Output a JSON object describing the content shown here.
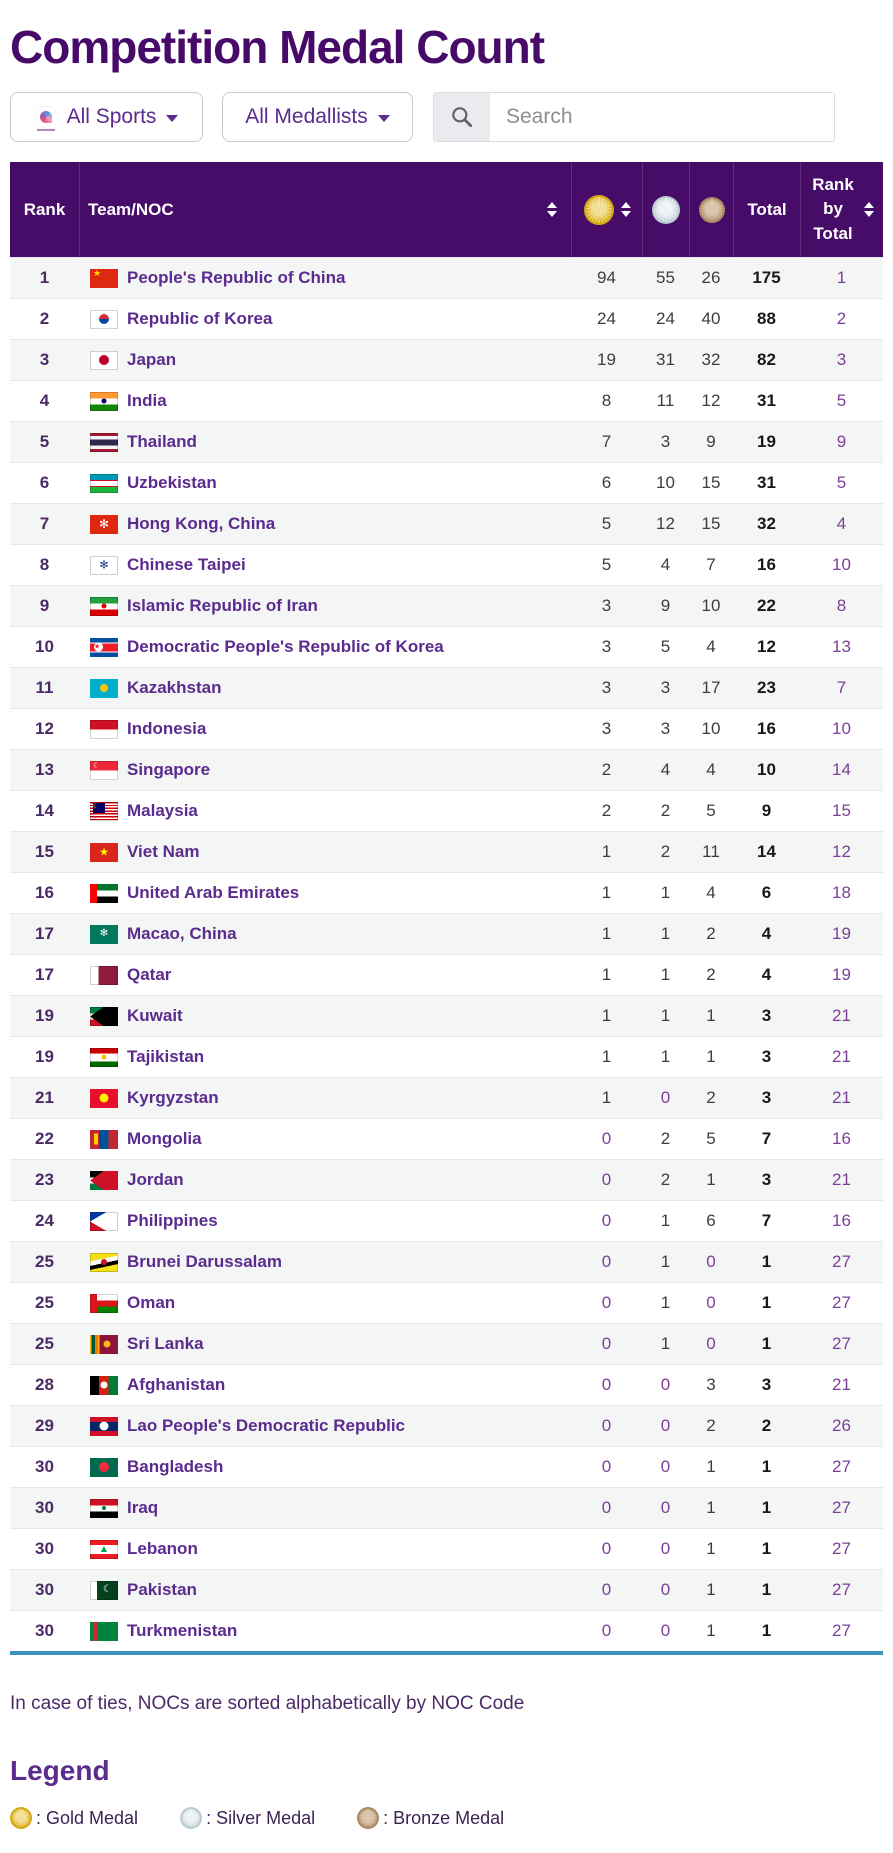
{
  "page": {
    "title": "Competition Medal Count"
  },
  "filters": {
    "sports_label": "All Sports",
    "medallists_label": "All Medallists",
    "search_placeholder": "Search"
  },
  "table": {
    "headers": {
      "rank": "Rank",
      "team": "Team/NOC",
      "gold_icon": "gold-medal-icon",
      "silver_icon": "silver-medal-icon",
      "bronze_icon": "bronze-medal-icon",
      "total": "Total",
      "rank_by_total": "Rank by Total"
    },
    "rows": [
      {
        "rank": "1",
        "team": "People's Republic of China",
        "flag": "CHN",
        "gold": 94,
        "silver": 55,
        "bronze": 26,
        "total": 175,
        "rbt": "1"
      },
      {
        "rank": "2",
        "team": "Republic of Korea",
        "flag": "KOR",
        "gold": 24,
        "silver": 24,
        "bronze": 40,
        "total": 88,
        "rbt": "2"
      },
      {
        "rank": "3",
        "team": "Japan",
        "flag": "JPN",
        "gold": 19,
        "silver": 31,
        "bronze": 32,
        "total": 82,
        "rbt": "3"
      },
      {
        "rank": "4",
        "team": "India",
        "flag": "IND",
        "gold": 8,
        "silver": 11,
        "bronze": 12,
        "total": 31,
        "rbt": "5"
      },
      {
        "rank": "5",
        "team": "Thailand",
        "flag": "THA",
        "gold": 7,
        "silver": 3,
        "bronze": 9,
        "total": 19,
        "rbt": "9"
      },
      {
        "rank": "6",
        "team": "Uzbekistan",
        "flag": "UZB",
        "gold": 6,
        "silver": 10,
        "bronze": 15,
        "total": 31,
        "rbt": "5"
      },
      {
        "rank": "7",
        "team": "Hong Kong, China",
        "flag": "HKG",
        "gold": 5,
        "silver": 12,
        "bronze": 15,
        "total": 32,
        "rbt": "4"
      },
      {
        "rank": "8",
        "team": "Chinese Taipei",
        "flag": "TPE",
        "gold": 5,
        "silver": 4,
        "bronze": 7,
        "total": 16,
        "rbt": "10"
      },
      {
        "rank": "9",
        "team": "Islamic Republic of Iran",
        "flag": "IRI",
        "gold": 3,
        "silver": 9,
        "bronze": 10,
        "total": 22,
        "rbt": "8"
      },
      {
        "rank": "10",
        "team": "Democratic People's Republic of Korea",
        "flag": "PRK",
        "gold": 3,
        "silver": 5,
        "bronze": 4,
        "total": 12,
        "rbt": "13"
      },
      {
        "rank": "11",
        "team": "Kazakhstan",
        "flag": "KAZ",
        "gold": 3,
        "silver": 3,
        "bronze": 17,
        "total": 23,
        "rbt": "7"
      },
      {
        "rank": "12",
        "team": "Indonesia",
        "flag": "INA",
        "gold": 3,
        "silver": 3,
        "bronze": 10,
        "total": 16,
        "rbt": "10"
      },
      {
        "rank": "13",
        "team": "Singapore",
        "flag": "SGP",
        "gold": 2,
        "silver": 4,
        "bronze": 4,
        "total": 10,
        "rbt": "14"
      },
      {
        "rank": "14",
        "team": "Malaysia",
        "flag": "MAS",
        "gold": 2,
        "silver": 2,
        "bronze": 5,
        "total": 9,
        "rbt": "15"
      },
      {
        "rank": "15",
        "team": "Viet Nam",
        "flag": "VIE",
        "gold": 1,
        "silver": 2,
        "bronze": 11,
        "total": 14,
        "rbt": "12"
      },
      {
        "rank": "16",
        "team": "United Arab Emirates",
        "flag": "UAE",
        "gold": 1,
        "silver": 1,
        "bronze": 4,
        "total": 6,
        "rbt": "18"
      },
      {
        "rank": "17",
        "team": "Macao, China",
        "flag": "MAC",
        "gold": 1,
        "silver": 1,
        "bronze": 2,
        "total": 4,
        "rbt": "19"
      },
      {
        "rank": "17",
        "team": "Qatar",
        "flag": "QAT",
        "gold": 1,
        "silver": 1,
        "bronze": 2,
        "total": 4,
        "rbt": "19"
      },
      {
        "rank": "19",
        "team": "Kuwait",
        "flag": "KUW",
        "gold": 1,
        "silver": 1,
        "bronze": 1,
        "total": 3,
        "rbt": "21"
      },
      {
        "rank": "19",
        "team": "Tajikistan",
        "flag": "TJK",
        "gold": 1,
        "silver": 1,
        "bronze": 1,
        "total": 3,
        "rbt": "21"
      },
      {
        "rank": "21",
        "team": "Kyrgyzstan",
        "flag": "KGZ",
        "gold": 1,
        "silver": 0,
        "bronze": 2,
        "total": 3,
        "rbt": "21"
      },
      {
        "rank": "22",
        "team": "Mongolia",
        "flag": "MGL",
        "gold": 0,
        "silver": 2,
        "bronze": 5,
        "total": 7,
        "rbt": "16"
      },
      {
        "rank": "23",
        "team": "Jordan",
        "flag": "JOR",
        "gold": 0,
        "silver": 2,
        "bronze": 1,
        "total": 3,
        "rbt": "21"
      },
      {
        "rank": "24",
        "team": "Philippines",
        "flag": "PHI",
        "gold": 0,
        "silver": 1,
        "bronze": 6,
        "total": 7,
        "rbt": "16"
      },
      {
        "rank": "25",
        "team": "Brunei Darussalam",
        "flag": "BRU",
        "gold": 0,
        "silver": 1,
        "bronze": 0,
        "total": 1,
        "rbt": "27"
      },
      {
        "rank": "25",
        "team": "Oman",
        "flag": "OMA",
        "gold": 0,
        "silver": 1,
        "bronze": 0,
        "total": 1,
        "rbt": "27"
      },
      {
        "rank": "25",
        "team": "Sri Lanka",
        "flag": "SRI",
        "gold": 0,
        "silver": 1,
        "bronze": 0,
        "total": 1,
        "rbt": "27"
      },
      {
        "rank": "28",
        "team": "Afghanistan",
        "flag": "AFG",
        "gold": 0,
        "silver": 0,
        "bronze": 3,
        "total": 3,
        "rbt": "21"
      },
      {
        "rank": "29",
        "team": "Lao People's Democratic Republic",
        "flag": "LAO",
        "gold": 0,
        "silver": 0,
        "bronze": 2,
        "total": 2,
        "rbt": "26"
      },
      {
        "rank": "30",
        "team": "Bangladesh",
        "flag": "BAN",
        "gold": 0,
        "silver": 0,
        "bronze": 1,
        "total": 1,
        "rbt": "27"
      },
      {
        "rank": "30",
        "team": "Iraq",
        "flag": "IRQ",
        "gold": 0,
        "silver": 0,
        "bronze": 1,
        "total": 1,
        "rbt": "27"
      },
      {
        "rank": "30",
        "team": "Lebanon",
        "flag": "LBN",
        "gold": 0,
        "silver": 0,
        "bronze": 1,
        "total": 1,
        "rbt": "27"
      },
      {
        "rank": "30",
        "team": "Pakistan",
        "flag": "PAK",
        "gold": 0,
        "silver": 0,
        "bronze": 1,
        "total": 1,
        "rbt": "27"
      },
      {
        "rank": "30",
        "team": "Turkmenistan",
        "flag": "TKM",
        "gold": 0,
        "silver": 0,
        "bronze": 1,
        "total": 1,
        "rbt": "27"
      }
    ]
  },
  "footer": {
    "tie_note": "In case of ties, NOCs are sorted alphabetically by NOC Code"
  },
  "legend": {
    "title": "Legend",
    "items": [
      {
        "icon": "gold-medal-icon",
        "label": ": Gold Medal"
      },
      {
        "icon": "silver-medal-icon",
        "label": ": Silver Medal"
      },
      {
        "icon": "bronze-medal-icon",
        "label": ": Bronze Medal"
      }
    ]
  },
  "colors": {
    "header_purple": "#470b68",
    "title_purple": "#470a68",
    "team_link_purple": "#5b2b8e",
    "rank_purple": "#4b2a66",
    "value_gray": "#3c3c43",
    "zero_purple": "#7c3e98",
    "total_black": "#17171c",
    "stripe": "#f4f6f5",
    "bottom_line_blue": "#3b94bc",
    "gold": "#e3b512",
    "silver": "#c7d6dd",
    "bronze": "#b8946a"
  },
  "flags": {
    "CHN": {
      "bg": "#de2910",
      "em": [
        {
          "ch": "★",
          "c": "#ffde00",
          "pos": "lt",
          "s": 9
        }
      ]
    },
    "KOR": {
      "bg": "#ffffff",
      "bd": 1,
      "em": [
        {
          "g": "linear-gradient(180deg,#cd2e3a 50%,#0047a0 50%)",
          "pos": "c",
          "s": 10
        }
      ]
    },
    "JPN": {
      "bg": "#ffffff",
      "bd": 1,
      "em": [
        {
          "g": "#bc002d",
          "pos": "c",
          "s": 10
        }
      ]
    },
    "IND": {
      "bg": "linear-gradient(180deg,#ff9933 0 33%,#ffffff 33% 66%,#138808 66%)",
      "bd": 1,
      "em": [
        {
          "g": "#000080",
          "pos": "c",
          "s": 5
        }
      ]
    },
    "THA": {
      "bg": "linear-gradient(180deg,#a51931 0 17%,#f4f5f8 17% 33%,#2d2a4a 33% 67%,#f4f5f8 67% 83%,#a51931 83%)",
      "bd": 1
    },
    "UZB": {
      "bg": "linear-gradient(180deg,#0099b5 0 31%,#ce1126 31% 36%,#ffffff 36% 64%,#ce1126 64% 69%,#1eb53a 69%)",
      "bd": 1
    },
    "HKG": {
      "bg": "#de2910",
      "em": [
        {
          "ch": "✻",
          "c": "#ffffff",
          "pos": "c",
          "s": 12
        }
      ]
    },
    "TPE": {
      "bg": "#ffffff",
      "bd": 1,
      "em": [
        {
          "ch": "✻",
          "c": "#1a3a8c",
          "pos": "c",
          "s": 11
        }
      ]
    },
    "IRI": {
      "bg": "linear-gradient(180deg,#239f40 0 33%,#ffffff 33% 66%,#da0000 66%)",
      "bd": 1,
      "em": [
        {
          "g": "#da0000",
          "pos": "c",
          "s": 5
        }
      ]
    },
    "PRK": {
      "bg": "linear-gradient(180deg,#024fa2 0 24%,#ffffff 24% 30%,#ed1c27 30% 70%,#ffffff 70% 76%,#024fa2 76%)",
      "em": [
        {
          "g": "#ffffff",
          "pos": "l",
          "s": 9
        },
        {
          "ch": "★",
          "c": "#ed1c27",
          "pos": "l",
          "s": 7
        }
      ]
    },
    "KAZ": {
      "bg": "#00afca",
      "em": [
        {
          "g": "#fec50c",
          "pos": "c",
          "s": 8
        }
      ]
    },
    "INA": {
      "bg": "linear-gradient(180deg,#ce1126 50%,#ffffff 50%)",
      "bd": 1
    },
    "SGP": {
      "bg": "linear-gradient(180deg,#ed2939 50%,#ffffff 50%)",
      "bd": 1,
      "em": [
        {
          "ch": "☾",
          "c": "#ffffff",
          "pos": "lt",
          "s": 8
        }
      ]
    },
    "MAS": {
      "bg": "repeating-linear-gradient(180deg,#cc0001 0 1.4px,#ffffff 1.4px 2.8px)",
      "bd": 1,
      "em": [
        {
          "g": "#010066",
          "pos": "lt",
          "sq": 1,
          "w": 12,
          "h": 10
        },
        {
          "ch": "☾",
          "c": "#ffcc00",
          "pos": "lt",
          "s": 7
        }
      ]
    },
    "VIE": {
      "bg": "#da251d",
      "em": [
        {
          "ch": "★",
          "c": "#ffff00",
          "pos": "c",
          "s": 11
        }
      ]
    },
    "UAE": {
      "bg": "linear-gradient(90deg,#ff0000 0 25%,transparent 25%),linear-gradient(180deg,#00732f 0 33%,#ffffff 33% 66%,#000000 66%)"
    },
    "MAC": {
      "bg": "#00785e",
      "em": [
        {
          "ch": "✻",
          "c": "#ffffff",
          "pos": "c",
          "s": 10
        }
      ]
    },
    "QAT": {
      "bg": "linear-gradient(90deg,#ffffff 0 30%,#8d1b3d 30%)",
      "bd": 1
    },
    "KUW": {
      "bg": "conic-gradient(from 55deg at 0% 50%,#000000 0 70deg,transparent 70deg),linear-gradient(180deg,#007a3d 0 33%,#ffffff 33% 66%,#ce1126 66%)",
      "bd": 1
    },
    "TJK": {
      "bg": "linear-gradient(180deg,#cc0000 0 30%,#ffffff 30% 70%,#006600 70%)",
      "bd": 1,
      "em": [
        {
          "g": "#f8c300",
          "pos": "c",
          "s": 5
        }
      ]
    },
    "KGZ": {
      "bg": "#e8112d",
      "em": [
        {
          "g": "#ffef00",
          "pos": "c",
          "s": 9
        }
      ]
    },
    "MGL": {
      "bg": "linear-gradient(90deg,#c4272f 0 33%,#015197 33% 66%,#c4272f 66%)",
      "em": [
        {
          "g": "#f9cf02",
          "pos": "l",
          "sq": 1,
          "w": 4,
          "h": 11
        }
      ]
    },
    "JOR": {
      "bg": "conic-gradient(from 55deg at 0% 50%,#ce1126 0 70deg,transparent 70deg),linear-gradient(180deg,#000000 0 33%,#ffffff 33% 66%,#007a3d 66%)"
    },
    "PHI": {
      "bg": "conic-gradient(from 60deg at 0% 50%,#ffffff 0 60deg,transparent 60deg),linear-gradient(180deg,#0038a8 50%,#ce1126 50%)",
      "bd": 1
    },
    "BRU": {
      "bg": "linear-gradient(168deg,#f7e017 0 34%,#ffffff 34% 52%,#000000 52% 68%,#f7e017 68%)",
      "bd": 1,
      "em": [
        {
          "g": "#cf1126",
          "pos": "c",
          "s": 6
        }
      ]
    },
    "OMA": {
      "bg": "linear-gradient(90deg,#db161b 0 25%,transparent 25%),linear-gradient(180deg,#ffffff 0 33%,#db161b 33% 66%,#008000 66%)",
      "bd": 1
    },
    "SRI": {
      "bg": "linear-gradient(90deg,#f7b718 0 5%,#005641 5% 17%,#ff7500 17% 29%,#f7b718 29% 34%,#8d153a 34%)",
      "em": [
        {
          "g": "#f7b718",
          "pos": "r",
          "s": 7
        }
      ]
    },
    "AFG": {
      "bg": "linear-gradient(90deg,#000000 0 33%,#d32011 33% 66%,#007a36 66%)",
      "em": [
        {
          "g": "#ffffff",
          "pos": "c",
          "s": 7
        }
      ]
    },
    "LAO": {
      "bg": "linear-gradient(180deg,#ce1126 0 25%,#002868 25% 75%,#ce1126 75%)",
      "em": [
        {
          "g": "#ffffff",
          "pos": "c",
          "s": 9
        }
      ]
    },
    "BAN": {
      "bg": "#006a4e",
      "em": [
        {
          "g": "#f42a41",
          "pos": "c",
          "s": 10
        }
      ]
    },
    "IRQ": {
      "bg": "linear-gradient(180deg,#ce1126 0 33%,#ffffff 33% 66%,#000000 66%)",
      "bd": 1,
      "em": [
        {
          "g": "#017b3d",
          "pos": "c",
          "s": 4
        }
      ]
    },
    "LBN": {
      "bg": "linear-gradient(180deg,#ed1c24 0 27%,#ffffff 27% 73%,#ed1c24 73%)",
      "bd": 1,
      "em": [
        {
          "ch": "▲",
          "c": "#00a651",
          "pos": "c",
          "s": 8
        }
      ]
    },
    "PAK": {
      "bg": "linear-gradient(90deg,#ffffff 0 25%,#01411c 25%)",
      "bd": 1,
      "em": [
        {
          "ch": "☾",
          "c": "#ffffff",
          "pos": "r",
          "s": 10
        }
      ]
    },
    "TKM": {
      "bg": "linear-gradient(90deg,#00843d 0 10%,#d22630 10% 28%,#00843d 28%)"
    }
  }
}
